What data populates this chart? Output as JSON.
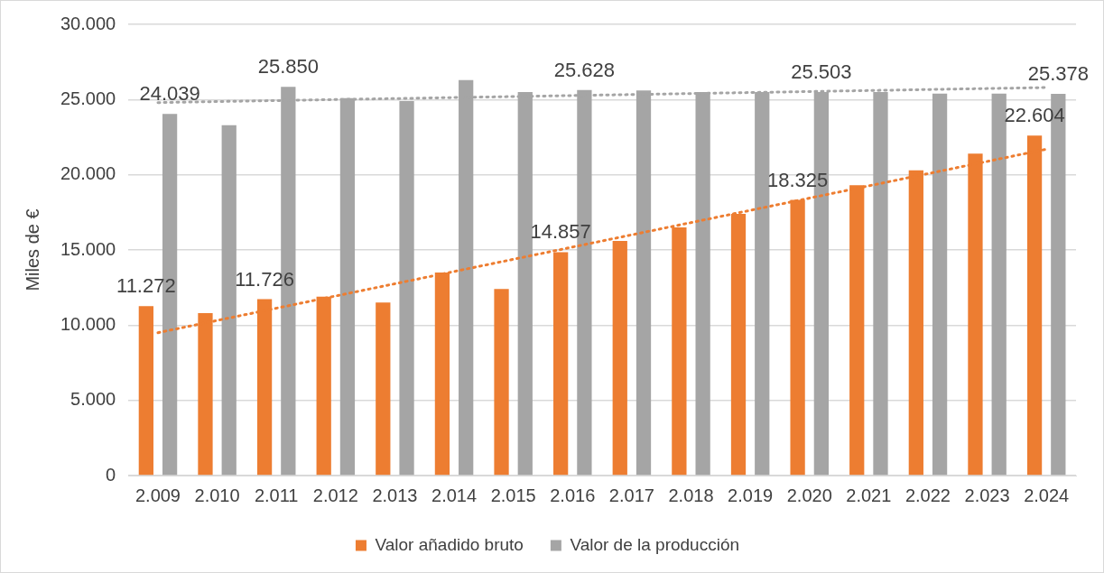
{
  "chart_data": {
    "type": "bar",
    "ylabel": "Miles de €",
    "categories": [
      "2.009",
      "2.010",
      "2.011",
      "2.012",
      "2.013",
      "2.014",
      "2.015",
      "2.016",
      "2.017",
      "2.018",
      "2.019",
      "2.020",
      "2.021",
      "2.022",
      "2.023",
      "2.024"
    ],
    "series": [
      {
        "name": "Valor añadido bruto",
        "color": "#ed7d31",
        "values": [
          11272,
          10800,
          11726,
          11900,
          11500,
          13500,
          12400,
          14857,
          15600,
          16500,
          17400,
          18325,
          19300,
          20300,
          21400,
          22604
        ],
        "value_labels": [
          "11.272",
          null,
          "11.726",
          null,
          null,
          null,
          null,
          "14.857",
          null,
          null,
          null,
          "18.325",
          null,
          null,
          null,
          "22.604"
        ]
      },
      {
        "name": "Valor de la producción",
        "color": "#a5a5a5",
        "values": [
          24039,
          23300,
          25850,
          25100,
          24900,
          26300,
          25500,
          25628,
          25600,
          25500,
          25500,
          25503,
          25500,
          25400,
          25400,
          25378
        ],
        "value_labels": [
          "24.039",
          null,
          "25.850",
          null,
          null,
          null,
          null,
          "25.628",
          null,
          null,
          null,
          "25.503",
          null,
          null,
          null,
          "25.378"
        ]
      },
      {
        "type": "line",
        "color": "#ed7d31",
        "line_style": "dotted",
        "marker": "none",
        "x": [
          "2.009",
          "2.024"
        ],
        "values": [
          9500,
          21700
        ]
      },
      {
        "type": "line",
        "color": "#a5a5a5",
        "line_style": "dotted",
        "marker": "none",
        "x": [
          "2.009",
          "2.024"
        ],
        "values": [
          24800,
          25800
        ]
      }
    ],
    "ylim": [
      0,
      30000
    ],
    "yticks": [
      {
        "value": 0,
        "label": "0"
      },
      {
        "value": 5000,
        "label": "5.000"
      },
      {
        "value": 10000,
        "label": "10.000"
      },
      {
        "value": 15000,
        "label": "15.000"
      },
      {
        "value": 20000,
        "label": "20.000"
      },
      {
        "value": 25000,
        "label": "25.000"
      },
      {
        "value": 30000,
        "label": "30.000"
      }
    ],
    "grid": "y",
    "legend": "bottom"
  }
}
